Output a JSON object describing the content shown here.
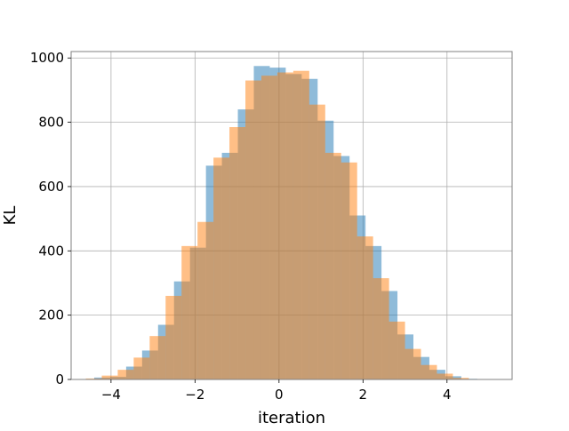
{
  "chart_data": {
    "type": "bar",
    "title": "",
    "xlabel": "iteration",
    "ylabel": "KL",
    "xlim": [
      -4.95,
      5.55
    ],
    "ylim": [
      0,
      1020
    ],
    "xticks": [
      -4,
      -2,
      0,
      2,
      4
    ],
    "xtick_labels": [
      "−4",
      "−2",
      "0",
      "2",
      "4"
    ],
    "yticks": [
      0,
      200,
      400,
      600,
      800,
      1000
    ],
    "ytick_labels": [
      "0",
      "200",
      "400",
      "600",
      "800",
      "1000"
    ],
    "grid": true,
    "legend": null,
    "series": [
      {
        "color": "#1f77b4",
        "opacity": 0.5,
        "bins": [
          {
            "x0": -4.4,
            "x1": -4.02,
            "value": 6
          },
          {
            "x0": -4.02,
            "x1": -3.64,
            "value": 8
          },
          {
            "x0": -3.64,
            "x1": -3.26,
            "value": 40
          },
          {
            "x0": -3.26,
            "x1": -2.88,
            "value": 90
          },
          {
            "x0": -2.88,
            "x1": -2.5,
            "value": 170
          },
          {
            "x0": -2.5,
            "x1": -2.12,
            "value": 305
          },
          {
            "x0": -2.12,
            "x1": -1.74,
            "value": 410
          },
          {
            "x0": -1.74,
            "x1": -1.36,
            "value": 665
          },
          {
            "x0": -1.36,
            "x1": -0.98,
            "value": 705
          },
          {
            "x0": -0.98,
            "x1": -0.6,
            "value": 840
          },
          {
            "x0": -0.6,
            "x1": -0.22,
            "value": 975
          },
          {
            "x0": -0.22,
            "x1": 0.16,
            "value": 970
          },
          {
            "x0": 0.16,
            "x1": 0.54,
            "value": 950
          },
          {
            "x0": 0.54,
            "x1": 0.92,
            "value": 935
          },
          {
            "x0": 0.92,
            "x1": 1.3,
            "value": 805
          },
          {
            "x0": 1.3,
            "x1": 1.68,
            "value": 695
          },
          {
            "x0": 1.68,
            "x1": 2.06,
            "value": 510
          },
          {
            "x0": 2.06,
            "x1": 2.44,
            "value": 415
          },
          {
            "x0": 2.44,
            "x1": 2.82,
            "value": 275
          },
          {
            "x0": 2.82,
            "x1": 3.2,
            "value": 140
          },
          {
            "x0": 3.2,
            "x1": 3.58,
            "value": 70
          },
          {
            "x0": 3.58,
            "x1": 3.96,
            "value": 30
          },
          {
            "x0": 3.96,
            "x1": 4.34,
            "value": 10
          },
          {
            "x0": 4.34,
            "x1": 4.72,
            "value": 2
          }
        ]
      },
      {
        "color": "#ff7f0e",
        "opacity": 0.5,
        "bins": [
          {
            "x0": -4.6,
            "x1": -4.22,
            "value": 3
          },
          {
            "x0": -4.22,
            "x1": -3.84,
            "value": 12
          },
          {
            "x0": -3.84,
            "x1": -3.46,
            "value": 30
          },
          {
            "x0": -3.46,
            "x1": -3.08,
            "value": 68
          },
          {
            "x0": -3.08,
            "x1": -2.7,
            "value": 135
          },
          {
            "x0": -2.7,
            "x1": -2.32,
            "value": 260
          },
          {
            "x0": -2.32,
            "x1": -1.94,
            "value": 415
          },
          {
            "x0": -1.94,
            "x1": -1.56,
            "value": 490
          },
          {
            "x0": -1.56,
            "x1": -1.18,
            "value": 690
          },
          {
            "x0": -1.18,
            "x1": -0.8,
            "value": 785
          },
          {
            "x0": -0.8,
            "x1": -0.42,
            "value": 930
          },
          {
            "x0": -0.42,
            "x1": -0.04,
            "value": 945
          },
          {
            "x0": -0.04,
            "x1": 0.34,
            "value": 955
          },
          {
            "x0": 0.34,
            "x1": 0.72,
            "value": 960
          },
          {
            "x0": 0.72,
            "x1": 1.1,
            "value": 855
          },
          {
            "x0": 1.1,
            "x1": 1.48,
            "value": 705
          },
          {
            "x0": 1.48,
            "x1": 1.86,
            "value": 675
          },
          {
            "x0": 1.86,
            "x1": 2.24,
            "value": 445
          },
          {
            "x0": 2.24,
            "x1": 2.62,
            "value": 315
          },
          {
            "x0": 2.62,
            "x1": 3.0,
            "value": 180
          },
          {
            "x0": 3.0,
            "x1": 3.38,
            "value": 95
          },
          {
            "x0": 3.38,
            "x1": 3.76,
            "value": 45
          },
          {
            "x0": 3.76,
            "x1": 4.14,
            "value": 18
          },
          {
            "x0": 4.14,
            "x1": 4.52,
            "value": 5
          }
        ]
      }
    ]
  }
}
